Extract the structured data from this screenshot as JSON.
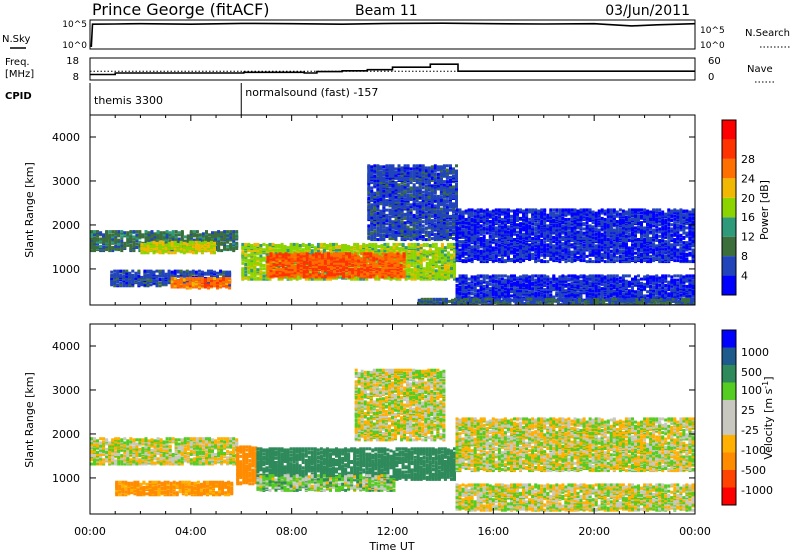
{
  "header": {
    "station": "Prince George (fitACF)",
    "beam": "Beam 11",
    "date": "03/Jun/2011"
  },
  "summary": {
    "nsky_label": "N.Sky",
    "nsearch_label": "N.Search",
    "freq_label_top": "Freq.",
    "freq_label_bottom": "[MHz]",
    "nave_label": "Nave",
    "cpid_label": "CPID",
    "noise_ticks": [
      "10^5",
      "10^0"
    ],
    "freq_ticks": [
      "18",
      "8"
    ],
    "nave_ticks": [
      "60",
      "0"
    ],
    "cpid_segments": [
      {
        "start_hour": 0.0,
        "label": "themis 3300"
      },
      {
        "start_hour": 6.0,
        "label": "normalsound (fast) -157"
      }
    ]
  },
  "axis": {
    "x_ticks": [
      "00:00",
      "04:00",
      "08:00",
      "12:00",
      "16:00",
      "20:00",
      "00:00"
    ],
    "x_label": "Time UT",
    "y_ticks": [
      "1000",
      "2000",
      "3000",
      "4000"
    ],
    "y_label": "Slant Range [km]"
  },
  "colors": {
    "power": [
      "#0000ff",
      "#2244bb",
      "#3b6e3b",
      "#2e9a7a",
      "#8cd400",
      "#f0b800",
      "#ff7000",
      "#ff3300",
      "#ff0000"
    ],
    "velocity": [
      "#ff0000",
      "#ff4400",
      "#ff8c00",
      "#ffb000",
      "#c8c8c0",
      "#c8c8c0",
      "#55cc22",
      "#2e8a5a",
      "#1e5a8c",
      "#0000ff"
    ]
  },
  "power_colorbar": {
    "title": "Power [dB]",
    "ticks": [
      "4",
      "8",
      "12",
      "16",
      "20",
      "24",
      "28"
    ]
  },
  "velocity_colorbar": {
    "title": "Velocity [m s",
    "title_superscript": "-1",
    "title_close": "]",
    "ticks": [
      "1000",
      "500",
      "100",
      "25",
      "-25",
      "-100",
      "-500",
      "-1000"
    ]
  },
  "chart_data": [
    {
      "type": "line",
      "title": "Prince George (fitACF) Beam 11 03/Jun/2011",
      "x_unit": "hours UT",
      "xlim": [
        0,
        24
      ],
      "series": [
        {
          "name": "N.Sky",
          "ylim_label": [
            "10^0",
            "10^5"
          ],
          "x": [
            0.05,
            0.1,
            1,
            2,
            4,
            6,
            8,
            10,
            12,
            14,
            16,
            18,
            20,
            21.5,
            22.5,
            24
          ],
          "y": [
            0.2,
            4.4,
            4.45,
            4.5,
            4.4,
            4.55,
            4.5,
            4.4,
            4.55,
            4.6,
            4.5,
            4.45,
            4.5,
            4.1,
            4.3,
            4.5
          ]
        },
        {
          "name": "Freq.",
          "unit": "MHz",
          "ylim": [
            8,
            18
          ],
          "x": [
            0,
            1,
            5,
            6,
            6.1,
            8,
            8.5,
            9,
            10,
            11,
            12,
            13,
            13.5,
            14.6,
            15,
            24
          ],
          "y": [
            10.5,
            11.2,
            11.2,
            11.2,
            11.5,
            11.5,
            11.2,
            11.8,
            12.2,
            12.7,
            13.8,
            13.8,
            15.2,
            12.0,
            12.0,
            12.0
          ]
        },
        {
          "name": "Nave",
          "ylim": [
            0,
            60
          ],
          "x": [
            0,
            24
          ],
          "y": [
            24,
            24
          ]
        }
      ]
    },
    {
      "type": "heatmap",
      "title": "Power [dB]",
      "xlabel": "Time UT",
      "ylabel": "Slant Range [km]",
      "xlim": [
        0,
        24
      ],
      "ylim": [
        180,
        4500
      ],
      "color_scale": {
        "label": "Power [dB]",
        "min": 0,
        "max": 32,
        "ticks": [
          4,
          8,
          12,
          16,
          20,
          24,
          28
        ]
      },
      "regions": [
        {
          "t0": 0.0,
          "t1": 5.8,
          "r0": 1450,
          "r1": 1900,
          "value": 10
        },
        {
          "t0": 2.0,
          "t1": 5.0,
          "r0": 1400,
          "r1": 1650,
          "value": 20
        },
        {
          "t0": 0.8,
          "t1": 5.6,
          "r0": 650,
          "r1": 1000,
          "value": 6
        },
        {
          "t0": 3.2,
          "t1": 5.6,
          "r0": 600,
          "r1": 820,
          "value": 26
        },
        {
          "t0": 6.0,
          "t1": 14.5,
          "r0": 800,
          "r1": 1600,
          "value": 18
        },
        {
          "t0": 7.0,
          "t1": 12.5,
          "r0": 850,
          "r1": 1400,
          "value": 28
        },
        {
          "t0": 11.0,
          "t1": 14.5,
          "r0": 1700,
          "r1": 3400,
          "value": 6
        },
        {
          "t0": 14.5,
          "t1": 24.0,
          "r0": 1200,
          "r1": 2400,
          "value": 4
        },
        {
          "t0": 14.5,
          "t1": 24.0,
          "r0": 300,
          "r1": 900,
          "value": 4
        },
        {
          "t0": 13.0,
          "t1": 24.0,
          "r0": 200,
          "r1": 350,
          "value": 8
        }
      ]
    },
    {
      "type": "heatmap",
      "title": "Velocity [m s^-1]",
      "xlabel": "Time UT",
      "ylabel": "Slant Range [km]",
      "xlim": [
        0,
        24
      ],
      "ylim": [
        180,
        4500
      ],
      "color_scale": {
        "label": "Velocity [m s^-1]",
        "ticks": [
          1000,
          500,
          100,
          25,
          -25,
          -100,
          -500,
          -1000
        ]
      },
      "regions": [
        {
          "t0": 0.0,
          "t1": 5.8,
          "r0": 1350,
          "r1": 1950,
          "value": 0
        },
        {
          "t0": 1.0,
          "t1": 5.6,
          "r0": 650,
          "r1": 950,
          "value": -150
        },
        {
          "t0": 5.8,
          "t1": 6.6,
          "r0": 900,
          "r1": 1750,
          "value": -300
        },
        {
          "t0": 6.6,
          "t1": 14.5,
          "r0": 1000,
          "r1": 1700,
          "value": 200
        },
        {
          "t0": 6.6,
          "t1": 12.0,
          "r0": 750,
          "r1": 1100,
          "value": 50
        },
        {
          "t0": 10.5,
          "t1": 14.0,
          "r0": 1900,
          "r1": 3500,
          "value": 0
        },
        {
          "t0": 14.5,
          "t1": 24.0,
          "r0": 1200,
          "r1": 2400,
          "value": 0
        },
        {
          "t0": 14.5,
          "t1": 24.0,
          "r0": 300,
          "r1": 900,
          "value": 0
        }
      ]
    }
  ]
}
